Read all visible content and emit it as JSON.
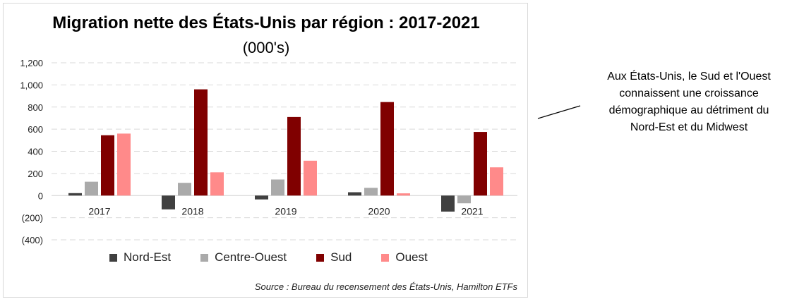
{
  "chart_data": {
    "type": "bar",
    "title": "Migration nette des États-Unis par région : 2017-2021",
    "subtitle": "(000's)",
    "categories": [
      "2017",
      "2018",
      "2019",
      "2020",
      "2021"
    ],
    "series": [
      {
        "name": "Nord-Est",
        "color": "#404040",
        "values": [
          22,
          -125,
          -35,
          30,
          -145
        ]
      },
      {
        "name": "Centre-Ouest",
        "color": "#aaaaaa",
        "values": [
          125,
          115,
          145,
          70,
          -70
        ]
      },
      {
        "name": "Sud",
        "color": "#800000",
        "values": [
          545,
          960,
          710,
          845,
          575
        ]
      },
      {
        "name": "Ouest",
        "color": "#ff8a8a",
        "values": [
          560,
          210,
          315,
          20,
          255
        ]
      }
    ],
    "ylim": [
      -400,
      1200
    ],
    "yticks": [
      1200,
      1000,
      800,
      600,
      400,
      200,
      0,
      -200,
      -400
    ],
    "ytick_labels": [
      "1,200",
      "1,000",
      "800",
      "600",
      "400",
      "200",
      "0",
      "(200)",
      "(400)"
    ],
    "grid": true,
    "legend": "bottom",
    "source": "Source : Bureau du recensement des États-Unis, Hamilton ETFs"
  },
  "annotation": {
    "lines": [
      "Aux États-Unis, le Sud et l'Ouest",
      "connaissent une croissance",
      "démographique au détriment du",
      "Nord-Est et du Midwest"
    ]
  }
}
